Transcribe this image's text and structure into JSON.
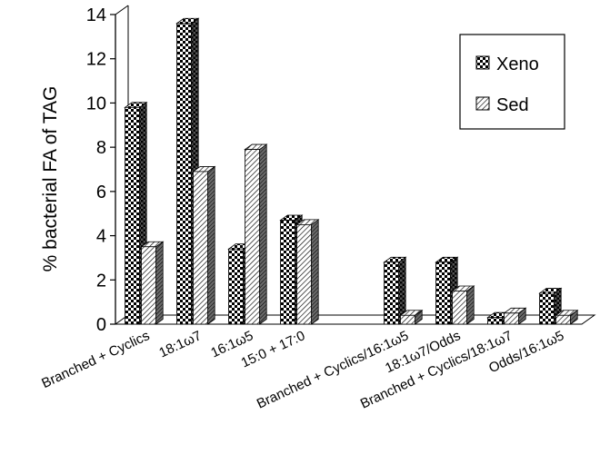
{
  "chart_data": {
    "type": "bar",
    "ylabel": "% bacterial FA of TAG",
    "xlabel": "",
    "ylim": [
      0,
      14
    ],
    "yticks": [
      "0",
      "2",
      "4",
      "6",
      "8",
      "10",
      "12",
      "14"
    ],
    "categories": [
      "Branched + Cyclics",
      "18:1ω7",
      "16:1ω5",
      "15:0 + 17:0",
      "",
      "Branched + Cyclics/16:1ω5",
      "18:1ω7/Odds",
      "Branched + Cyclics/18:1ω7",
      "Odds/16:1ω5"
    ],
    "series": [
      {
        "name": "Xeno",
        "pattern": "checkerboard",
        "values": [
          9.8,
          13.6,
          3.4,
          4.7,
          null,
          2.8,
          2.8,
          0.3,
          1.4
        ]
      },
      {
        "name": "Sed",
        "pattern": "diagonal-hatch",
        "values": [
          3.5,
          6.9,
          7.9,
          4.5,
          null,
          0.4,
          1.5,
          0.5,
          0.4
        ]
      }
    ],
    "legend_position": "top-right",
    "grid": false
  }
}
